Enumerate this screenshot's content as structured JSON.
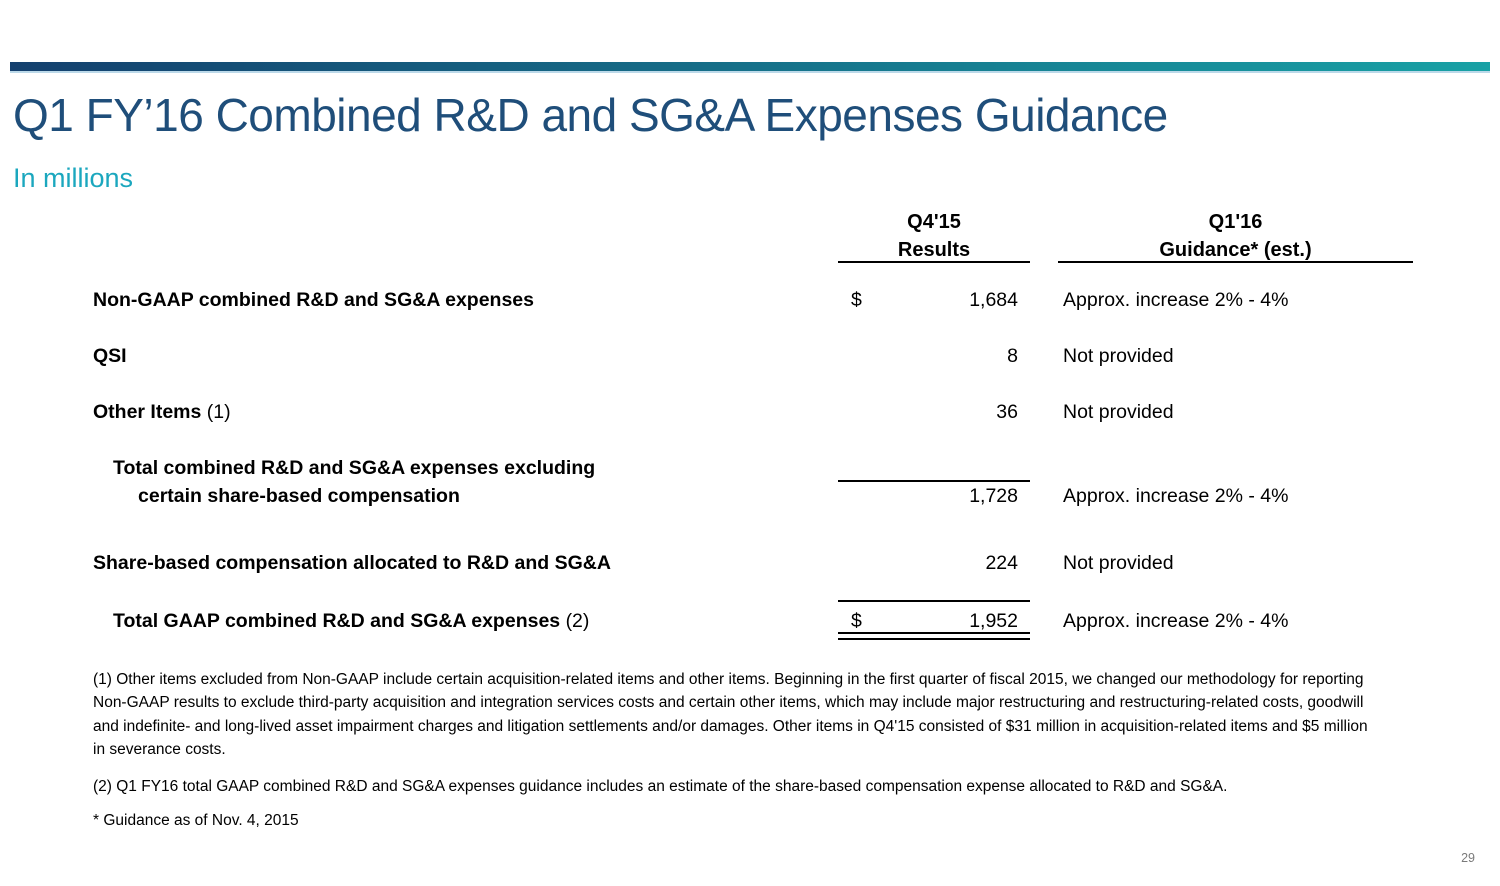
{
  "slide": {
    "title": "Q1 FY’16 Combined R&D and SG&A Expenses Guidance",
    "subtitle": "In millions",
    "page_number": "29"
  },
  "colors": {
    "title_blue": "#1F4E7A",
    "accent_teal": "#1BA7BE",
    "bar_gradient_left": "#14406E",
    "bar_gradient_right": "#18A1A5",
    "body_text": "#000000",
    "page_number_gray": "#7A7A7A"
  },
  "table": {
    "col_results": {
      "line1": "Q4'15",
      "line2": "Results"
    },
    "col_guidance": {
      "line1": "Q1'16",
      "line2": "Guidance* (est.)"
    },
    "rows": [
      {
        "label": "Non-GAAP combined R&D and SG&A expenses",
        "note": "",
        "currency": "$",
        "value": "1,684",
        "guidance": "Approx. increase 2% - 4%"
      },
      {
        "label": "QSI",
        "note": "",
        "currency": "",
        "value": "8",
        "guidance": "Not provided"
      },
      {
        "label": "Other Items",
        "note": "(1)",
        "currency": "",
        "value": "36",
        "guidance": "Not provided"
      },
      {
        "label": "Total combined R&D and SG&A expenses excluding",
        "label_line2": "certain share-based compensation",
        "note": "",
        "currency": "",
        "value": "1,728",
        "guidance": "Approx. increase 2% - 4%"
      },
      {
        "label": "Share-based compensation allocated to R&D and SG&A",
        "note": "",
        "currency": "",
        "value": "224",
        "guidance": "Not provided"
      },
      {
        "label": "Total GAAP combined R&D and SG&A expenses",
        "note": "(2)",
        "currency": "$",
        "value": "1,952",
        "guidance": "Approx. increase 2% - 4%"
      }
    ]
  },
  "footnotes": [
    "(1) Other items excluded from Non-GAAP include certain acquisition-related items and other items. Beginning in the first quarter of fiscal 2015, we changed our methodology for reporting Non-GAAP results to exclude third-party acquisition and integration services costs and certain other items, which may include major restructuring and restructuring-related costs, goodwill and indefinite- and long-lived asset impairment charges and litigation settlements and/or damages. Other items in Q4'15 consisted of $31 million in acquisition-related items and $5 million in severance costs.",
    "(2) Q1 FY16 total GAAP combined R&D and SG&A expenses guidance includes an estimate of the share-based compensation expense allocated to R&D and SG&A.",
    "* Guidance as of Nov. 4, 2015"
  ]
}
